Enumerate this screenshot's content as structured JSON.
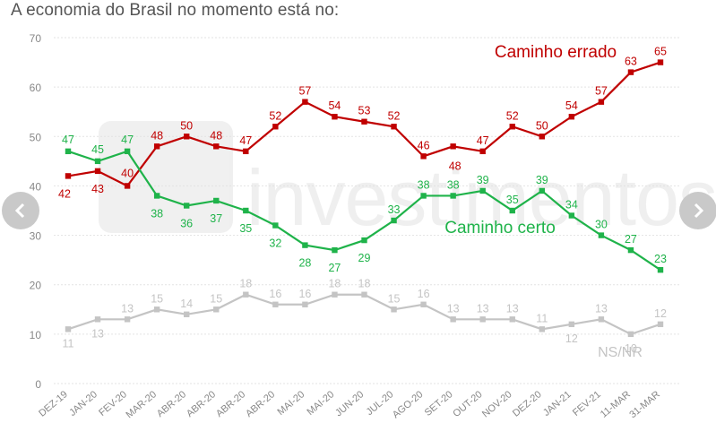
{
  "title": "A economia do Brasil no momento está no:",
  "watermark_text": "investimentos",
  "nav": {
    "prev_icon": "chevron-left-icon",
    "next_icon": "chevron-right-icon"
  },
  "chart_data": {
    "type": "line",
    "title": "A economia do Brasil no momento está no:",
    "categories": [
      "DEZ-19",
      "JAN-20",
      "FEV-20",
      "MAR-20",
      "ABR-20",
      "ABR-20",
      "ABR-20",
      "ABR-20",
      "MAI-20",
      "MAI-20",
      "JUN-20",
      "JUL-20",
      "AGO-20",
      "SET-20",
      "OUT-20",
      "NOV-20",
      "DEZ-20",
      "JAN-21",
      "FEV-21",
      "11-MAR",
      "31-MAR"
    ],
    "ylim": [
      0,
      70
    ],
    "yticks": [
      0,
      10,
      20,
      30,
      40,
      50,
      60,
      70
    ],
    "grid": true,
    "series": [
      {
        "name": "Caminho errado",
        "color": "#c00000",
        "values": [
          42,
          43,
          40,
          48,
          50,
          48,
          47,
          52,
          57,
          54,
          53,
          52,
          46,
          48,
          47,
          52,
          50,
          54,
          57,
          63,
          65
        ]
      },
      {
        "name": "Caminho certo",
        "color": "#1fb34a",
        "values": [
          47,
          45,
          47,
          38,
          36,
          37,
          35,
          32,
          28,
          27,
          29,
          33,
          38,
          38,
          39,
          35,
          39,
          34,
          30,
          27,
          23
        ]
      },
      {
        "name": "NS/NR",
        "color": "#c4c4c4",
        "values": [
          11,
          13,
          13,
          15,
          14,
          15,
          18,
          16,
          16,
          18,
          18,
          15,
          16,
          13,
          13,
          13,
          11,
          12,
          13,
          10,
          12
        ]
      }
    ]
  }
}
